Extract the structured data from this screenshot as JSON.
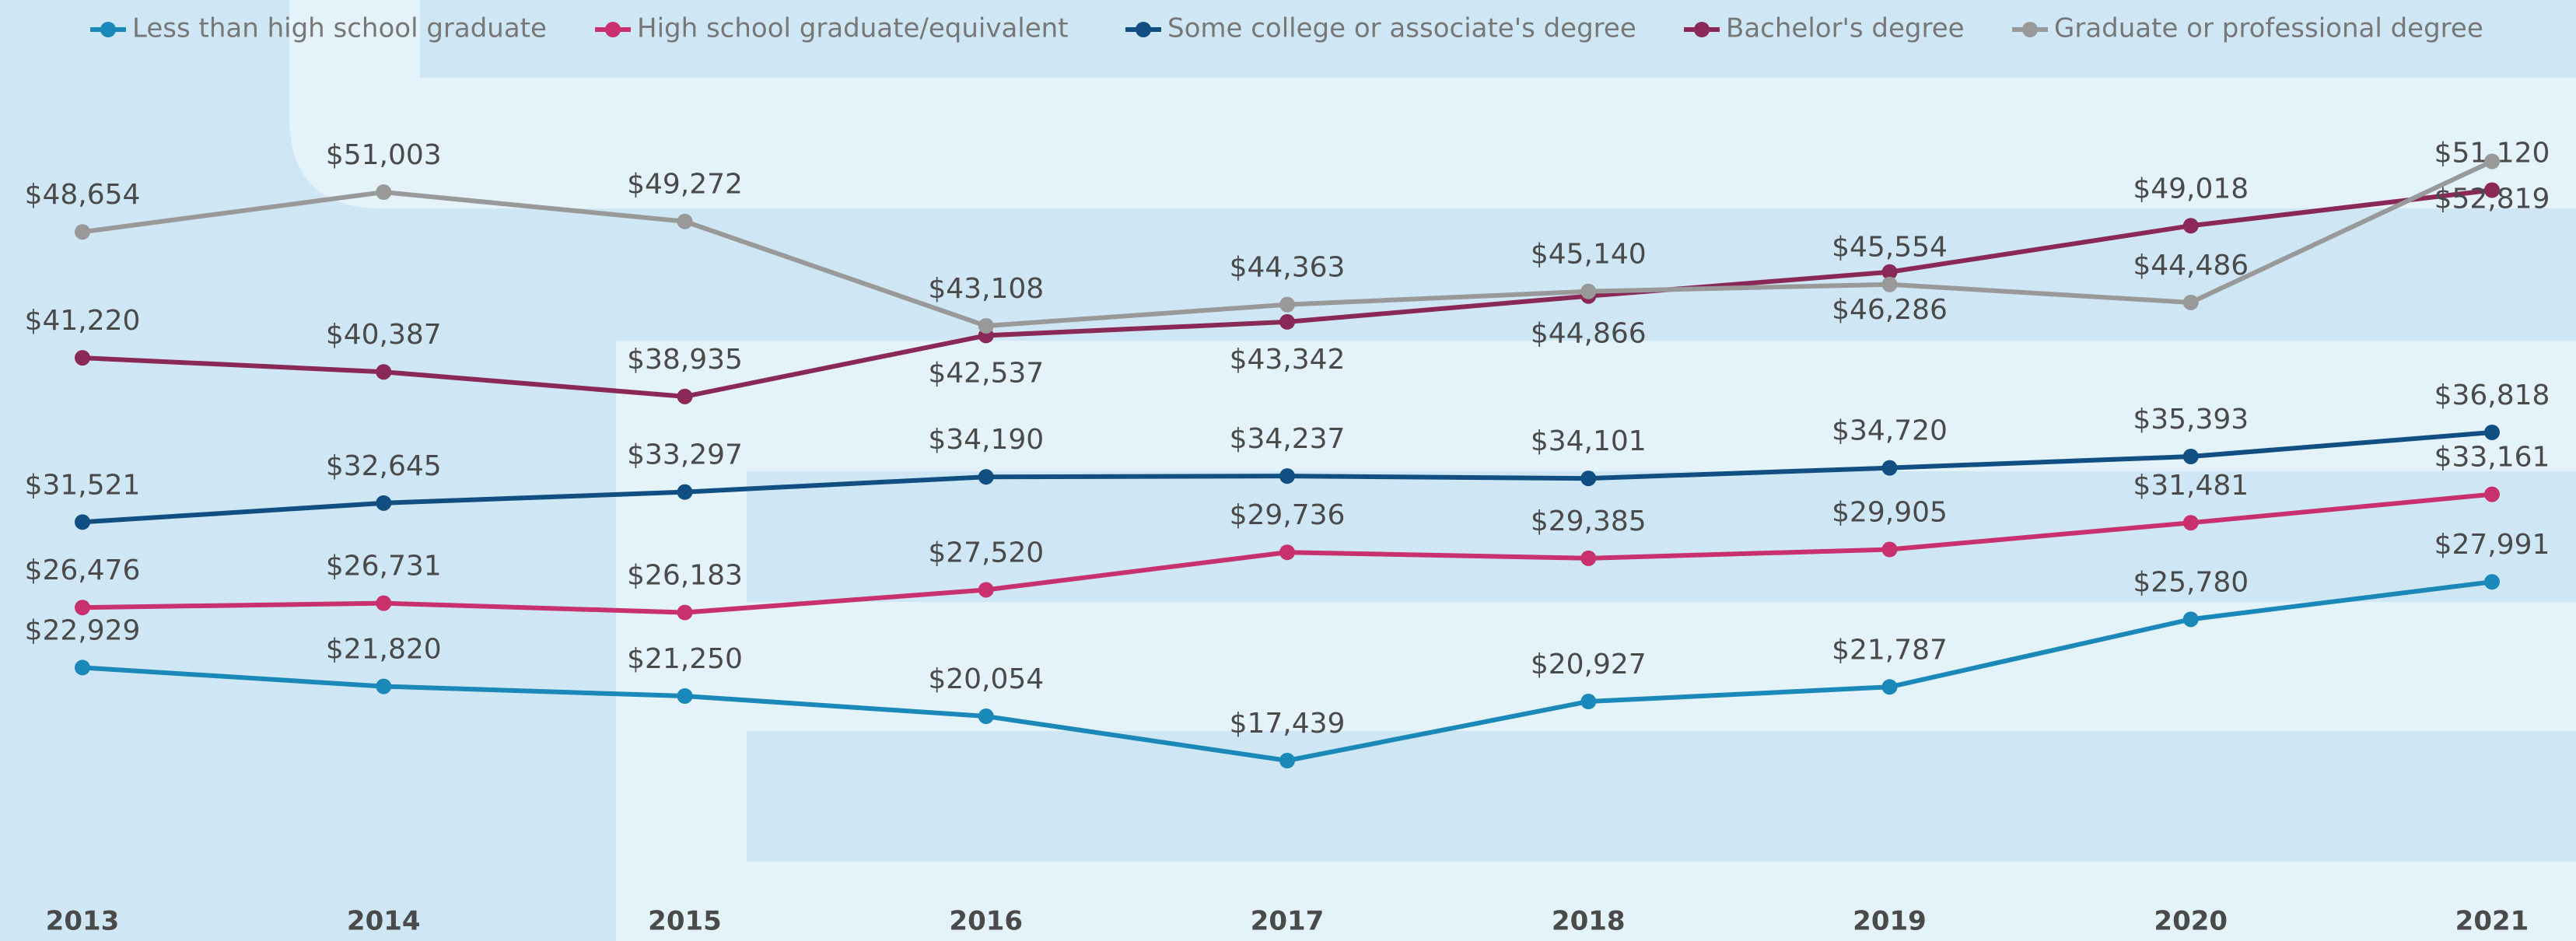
{
  "chart_data": {
    "type": "line",
    "categories": [
      "2013",
      "2014",
      "2015",
      "2016",
      "2017",
      "2018",
      "2019",
      "2020",
      "2021"
    ],
    "ylim": [
      10000,
      55000
    ],
    "legend": "top",
    "series": [
      {
        "name": "Less than high school graduate",
        "color": "#1a88b8",
        "values": [
          22929,
          21820,
          21250,
          20054,
          17439,
          20927,
          21787,
          25780,
          27991
        ],
        "value_labels": [
          "$22,929",
          "$21,820",
          "$21,250",
          "$20,054",
          "$17,439",
          "$20,927",
          "$21,787",
          "$25,780",
          "$27,991"
        ]
      },
      {
        "name": "High school graduate/equivalent",
        "color": "#c8306e",
        "values": [
          26476,
          26731,
          26183,
          27520,
          29736,
          29385,
          29905,
          31481,
          33161
        ],
        "value_labels": [
          "$26,476",
          "$26,731",
          "$26,183",
          "$27,520",
          "$29,736",
          "$29,385",
          "$29,905",
          "$31,481",
          "$33,161"
        ]
      },
      {
        "name": "Some college or associate's degree",
        "color": "#114f82",
        "values": [
          31521,
          32645,
          33297,
          34190,
          34237,
          34101,
          34720,
          35393,
          36818
        ],
        "value_labels": [
          "$31,521",
          "$32,645",
          "$33,297",
          "$34,190",
          "$34,237",
          "$34,101",
          "$34,720",
          "$35,393",
          "$36,818"
        ]
      },
      {
        "name": "Bachelor's degree",
        "color": "#8a2857",
        "values": [
          41220,
          40387,
          38935,
          42537,
          43342,
          44866,
          46286,
          49018,
          51120
        ],
        "value_labels": [
          "$41,220",
          "$40,387",
          "$38,935",
          "$42,537",
          "$43,342",
          "$44,866",
          "$46,286",
          "$49,018",
          "$51,120"
        ]
      },
      {
        "name": "Graduate or professional degree",
        "color": "#999999",
        "values": [
          48654,
          51003,
          49272,
          43108,
          44363,
          45140,
          45554,
          44486,
          52819
        ],
        "value_labels": [
          "$48,654",
          "$51,003",
          "$49,272",
          "$43,108",
          "$44,363",
          "$45,140",
          "$45,554",
          "$44,486",
          "$52,819"
        ]
      }
    ]
  }
}
